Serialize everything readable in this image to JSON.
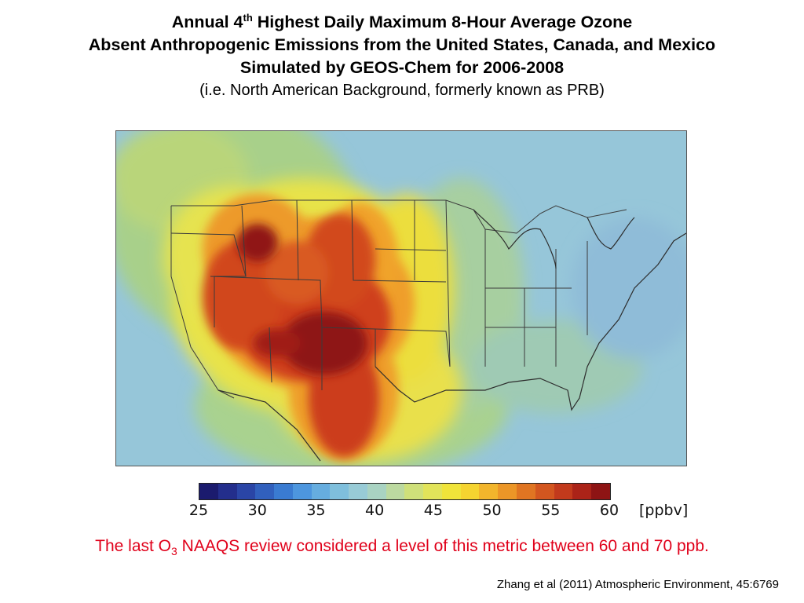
{
  "title": {
    "line1_pre": "Annual 4",
    "line1_sup": "th",
    "line1_post": " Highest Daily Maximum 8-Hour Average Ozone",
    "line2": "Absent Anthropogenic Emissions from the United States, Canada, and Mexico",
    "line3": "Simulated by GEOS-Chem for 2006-2008",
    "subtitle": "(i.e. North American Background, formerly known as PRB)"
  },
  "map": {
    "region": "North America (contiguous United States with parts of Canada and Mexico)",
    "variable": "Annual 4th highest daily maximum 8-hour average ozone",
    "units": "ppbv",
    "background_value": 42,
    "hotspots": [
      {
        "name": "Four Corners / Southern Rockies core",
        "value": 60
      },
      {
        "name": "Northern Rockies (Montana)",
        "value": 59
      },
      {
        "name": "Great Basin / Intermountain West",
        "value": 55
      },
      {
        "name": "Southern California deserts",
        "value": 54
      },
      {
        "name": "Northern Mexico plateau",
        "value": 55
      },
      {
        "name": "Eastern Canada",
        "value": 40
      },
      {
        "name": "Southeast United States",
        "value": 38
      },
      {
        "name": "Gulf of Mexico",
        "value": 42
      }
    ]
  },
  "colorbar": {
    "min": 25,
    "max": 60,
    "ticks": [
      "25",
      "30",
      "35",
      "40",
      "45",
      "50",
      "55",
      "60"
    ],
    "units_label": "[ppbv]",
    "colors": [
      "#1b1b6e",
      "#232e8c",
      "#2a45a6",
      "#3160bd",
      "#3a7bd1",
      "#4d96de",
      "#66addf",
      "#7fbfdc",
      "#98cbd6",
      "#a9d3c2",
      "#bcd9a0",
      "#cfe07a",
      "#e2e45a",
      "#f0e43a",
      "#f5d430",
      "#f2b52c",
      "#ec9627",
      "#e07522",
      "#d3561f",
      "#c23a1c",
      "#ab2318",
      "#8e1414"
    ]
  },
  "note": {
    "pre": "The last O",
    "sub": "3",
    "post": " NAAQS review considered a level of this metric between  60 and 70 ppb."
  },
  "citation": "Zhang et al (2011) Atmospheric Environment, 45:6769"
}
